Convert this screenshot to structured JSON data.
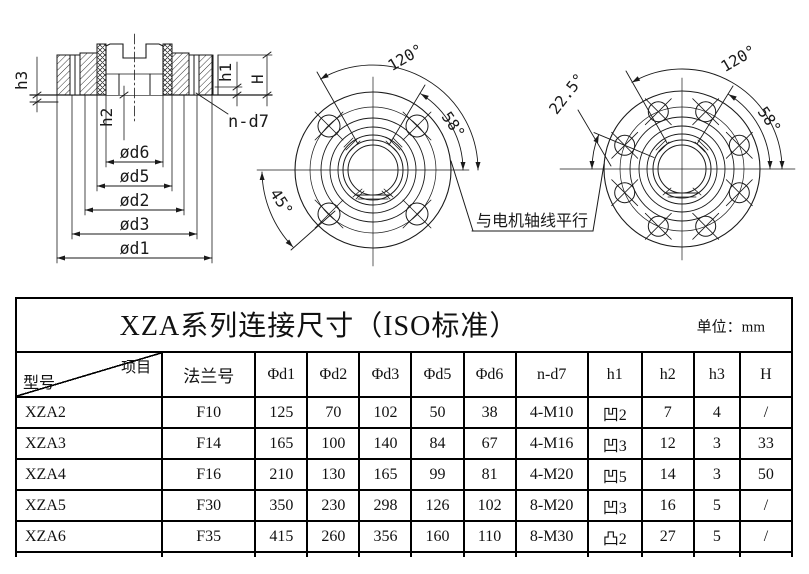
{
  "drawings": {
    "section": {
      "dim_h3": "h3",
      "dim_h2": "h2",
      "dim_h1": "h1",
      "dim_H": "H",
      "dim_nd7": "n-d7",
      "dia_labels": [
        "ød6",
        "ød5",
        "ød2",
        "ød3",
        "ød1"
      ]
    },
    "front_view_4bolt": {
      "angle_top": "120°",
      "angle_right": "58°",
      "angle_left": "45°"
    },
    "front_view_8bolt": {
      "angle_left": "22.5°",
      "angle_top": "120°",
      "angle_right": "58°"
    },
    "note_parallel": "与电机轴线平行"
  },
  "table": {
    "title": "XZA系列连接尺寸（ISO标准）",
    "unit": "单位：mm",
    "corner": {
      "top": "项目",
      "bottom": "型号"
    },
    "columns": [
      "法兰号",
      "Φd1",
      "Φd2",
      "Φd3",
      "Φd5",
      "Φd6",
      "n-d7",
      "h1",
      "h2",
      "h3",
      "H"
    ],
    "rows": [
      {
        "model": "XZA2",
        "values": [
          "F10",
          "125",
          "70",
          "102",
          "50",
          "38",
          "4-M10",
          "凹2",
          "7",
          "4",
          "/"
        ]
      },
      {
        "model": "XZA3",
        "values": [
          "F14",
          "165",
          "100",
          "140",
          "84",
          "67",
          "4-M16",
          "凹3",
          "12",
          "3",
          "33"
        ]
      },
      {
        "model": "XZA4",
        "values": [
          "F16",
          "210",
          "130",
          "165",
          "99",
          "81",
          "4-M20",
          "凹5",
          "14",
          "3",
          "50"
        ]
      },
      {
        "model": "XZA5",
        "values": [
          "F30",
          "350",
          "230",
          "298",
          "126",
          "102",
          "8-M20",
          "凹3",
          "16",
          "5",
          "/"
        ]
      },
      {
        "model": "XZA6",
        "values": [
          "F35",
          "415",
          "260",
          "356",
          "160",
          "110",
          "8-M30",
          "凸2",
          "27",
          "5",
          "/"
        ]
      }
    ]
  }
}
